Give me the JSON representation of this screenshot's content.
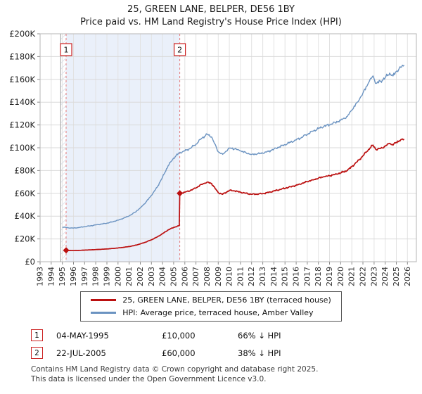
{
  "header": {
    "title": "25, GREEN LANE, BELPER, DE56 1BY",
    "subtitle": "Price paid vs. HM Land Registry's House Price Index (HPI)"
  },
  "chart_data": {
    "type": "line",
    "title": "25, GREEN LANE, BELPER, DE56 1BY",
    "subtitle": "Price paid vs. HM Land Registry's House Price Index (HPI)",
    "xlabel": "",
    "ylabel": "",
    "grid": true,
    "legend_position": "bottom",
    "xlim": [
      1993,
      2026.8
    ],
    "ylim": [
      0,
      200000
    ],
    "x_ticks": [
      1993,
      1994,
      1995,
      1996,
      1997,
      1998,
      1999,
      2000,
      2001,
      2002,
      2003,
      2004,
      2005,
      2006,
      2007,
      2008,
      2009,
      2010,
      2011,
      2012,
      2013,
      2014,
      2015,
      2016,
      2017,
      2018,
      2019,
      2020,
      2021,
      2022,
      2023,
      2024,
      2025,
      2026
    ],
    "y_tick_values": [
      0,
      20000,
      40000,
      60000,
      80000,
      100000,
      120000,
      140000,
      160000,
      180000,
      200000
    ],
    "y_tick_labels": [
      "£0",
      "£20K",
      "£40K",
      "£60K",
      "£80K",
      "£100K",
      "£120K",
      "£140K",
      "£160K",
      "£180K",
      "£200K"
    ],
    "data_start_line": 1994.85,
    "hatched_region": {
      "from": 1994.85,
      "to": 1995.34
    },
    "shaded_region": {
      "from": 1995.34,
      "to": 2005.55,
      "color": "#eaf0fa"
    },
    "sale_markers": [
      {
        "label": "1",
        "x": 1995.34,
        "value": 10000
      },
      {
        "label": "2",
        "x": 2005.55,
        "value": 60000
      }
    ],
    "series": [
      {
        "name": "25, GREEN LANE, BELPER, DE56 1BY (terraced house)",
        "color": "#bb0f0f",
        "x": [
          1995.34,
          1995.7,
          1996.0,
          1996.5,
          1997.0,
          1997.5,
          1998.0,
          1998.5,
          1999.0,
          1999.5,
          2000.0,
          2000.5,
          2001.0,
          2001.5,
          2002.0,
          2002.5,
          2003.0,
          2003.5,
          2004.0,
          2004.5,
          2005.0,
          2005.5,
          2005.55,
          2006.0,
          2006.5,
          2007.0,
          2007.5,
          2008.0,
          2008.4,
          2009.0,
          2009.4,
          2010.0,
          2010.5,
          2011.0,
          2011.5,
          2012.0,
          2012.5,
          2013.0,
          2013.5,
          2014.0,
          2014.5,
          2015.0,
          2015.5,
          2016.0,
          2016.5,
          2017.0,
          2017.5,
          2018.0,
          2018.5,
          2019.0,
          2019.5,
          2020.0,
          2020.6,
          2021.0,
          2021.5,
          2022.0,
          2022.5,
          2022.9,
          2023.2,
          2023.6,
          2024.0,
          2024.4,
          2024.7,
          2025.0,
          2025.4,
          2025.7
        ],
        "values": [
          10000,
          9850,
          9770,
          9930,
          10200,
          10430,
          10690,
          10930,
          11190,
          11590,
          12090,
          12650,
          13310,
          14300,
          15630,
          17280,
          19270,
          21590,
          24570,
          27880,
          30130,
          31620,
          60000,
          61000,
          62450,
          64770,
          67910,
          69800,
          68720,
          60560,
          59120,
          62640,
          62130,
          61000,
          60000,
          59120,
          59370,
          59750,
          60750,
          62010,
          63260,
          64520,
          65770,
          67030,
          68530,
          70290,
          71860,
          73300,
          74560,
          75440,
          76690,
          77950,
          80020,
          83470,
          87860,
          92880,
          98530,
          102300,
          98220,
          99470,
          101360,
          103870,
          102300,
          104810,
          107010,
          107500
        ]
      },
      {
        "name": "HPI: Average price, terraced house, Amber Valley",
        "color": "#6b93c1",
        "x": [
          1995.0,
          1995.5,
          1996.0,
          1996.5,
          1997.0,
          1997.5,
          1998.0,
          1998.5,
          1999.0,
          1999.5,
          2000.0,
          2000.5,
          2001.0,
          2001.5,
          2002.0,
          2002.5,
          2003.0,
          2003.5,
          2004.0,
          2004.5,
          2005.0,
          2005.5,
          2006.0,
          2006.5,
          2007.0,
          2007.5,
          2008.0,
          2008.4,
          2009.0,
          2009.4,
          2010.0,
          2010.5,
          2011.0,
          2011.5,
          2012.0,
          2012.5,
          2013.0,
          2013.5,
          2014.0,
          2014.5,
          2015.0,
          2015.5,
          2016.0,
          2016.5,
          2017.0,
          2017.5,
          2018.0,
          2018.5,
          2019.0,
          2019.5,
          2020.0,
          2020.6,
          2021.0,
          2021.5,
          2022.0,
          2022.5,
          2022.9,
          2023.2,
          2023.6,
          2024.0,
          2024.4,
          2024.7,
          2025.0,
          2025.4,
          2025.7
        ],
        "values": [
          30500,
          29800,
          29500,
          30000,
          30800,
          31500,
          32300,
          33000,
          33800,
          35000,
          36500,
          38200,
          40200,
          43200,
          47200,
          52200,
          58200,
          65200,
          74200,
          84200,
          91000,
          95500,
          97200,
          99500,
          103200,
          108200,
          111800,
          109500,
          96500,
          94200,
          99800,
          99000,
          97200,
          95600,
          94200,
          94600,
          95200,
          96800,
          98800,
          100800,
          102800,
          104800,
          106800,
          109200,
          112000,
          114500,
          116800,
          118800,
          120200,
          122200,
          124200,
          127500,
          133000,
          140000,
          148000,
          157000,
          163000,
          156500,
          158500,
          161500,
          165500,
          163000,
          167000,
          170500,
          172500
        ]
      }
    ]
  },
  "legend": {
    "entries": [
      {
        "label": "25, GREEN LANE, BELPER, DE56 1BY (terraced house)"
      },
      {
        "label": "HPI: Average price, terraced house, Amber Valley"
      }
    ]
  },
  "transactions": [
    {
      "num": "1",
      "date": "04-MAY-1995",
      "price": "£10,000",
      "hpi_diff": "66% ↓ HPI"
    },
    {
      "num": "2",
      "date": "22-JUL-2005",
      "price": "£60,000",
      "hpi_diff": "38% ↓ HPI"
    }
  ],
  "footer": {
    "line1": "Contains HM Land Registry data © Crown copyright and database right 2025.",
    "line2": "This data is licensed under the Open Government Licence v3.0."
  }
}
